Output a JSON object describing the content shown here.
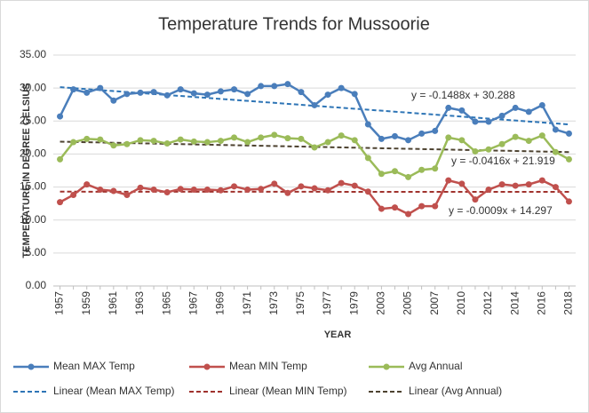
{
  "chart_data": {
    "type": "line",
    "title": "Temperature Trends for Mussoorie",
    "xlabel": "YEAR",
    "ylabel": "TEMPERATURE IN DEGREE CELSIUS",
    "categories": [
      "1957",
      null,
      "1959",
      null,
      "1961",
      null,
      "1963",
      null,
      "1965",
      null,
      "1967",
      null,
      "1969",
      null,
      "1971",
      null,
      "1973",
      null,
      "1975",
      null,
      "1977",
      null,
      "1979",
      null,
      "2003",
      null,
      "2005",
      null,
      "2007",
      null,
      "2010",
      null,
      "2012",
      null,
      "2014",
      null,
      "2016",
      null,
      "2018"
    ],
    "series": [
      {
        "name": "Mean MAX Temp",
        "color": "#4a7ebb",
        "values": [
          25.7,
          29.8,
          29.3,
          30.0,
          28.1,
          29.1,
          29.3,
          29.4,
          28.9,
          29.8,
          29.2,
          29.0,
          29.5,
          29.8,
          29.1,
          30.3,
          30.3,
          30.6,
          29.4,
          27.4,
          29.0,
          30.0,
          29.1,
          24.5,
          22.3,
          22.7,
          22.1,
          23.1,
          23.5,
          27.0,
          26.6,
          24.9,
          24.9,
          25.8,
          27.0,
          26.4,
          27.4,
          23.7,
          23.1
        ]
      },
      {
        "name": "Mean MIN Temp",
        "color": "#c0504d",
        "values": [
          12.7,
          13.8,
          15.4,
          14.6,
          14.4,
          13.8,
          14.9,
          14.6,
          14.2,
          14.7,
          14.6,
          14.6,
          14.5,
          15.1,
          14.6,
          14.7,
          15.5,
          14.1,
          15.1,
          14.8,
          14.5,
          15.6,
          15.2,
          14.3,
          11.7,
          11.9,
          10.9,
          12.1,
          12.1,
          16.0,
          15.5,
          13.1,
          14.6,
          15.4,
          15.2,
          15.4,
          16.0,
          15.0,
          12.8
        ]
      },
      {
        "name": "Avg Annual",
        "color": "#9bbb59",
        "values": [
          19.2,
          21.8,
          22.3,
          22.2,
          21.3,
          21.5,
          22.1,
          22.0,
          21.6,
          22.2,
          21.9,
          21.8,
          22.0,
          22.5,
          21.8,
          22.5,
          22.9,
          22.4,
          22.3,
          21.0,
          21.8,
          22.8,
          22.1,
          19.4,
          17.0,
          17.4,
          16.5,
          17.6,
          17.8,
          22.5,
          22.1,
          20.4,
          20.7,
          21.5,
          22.6,
          22.0,
          22.8,
          20.3,
          19.2
        ]
      }
    ],
    "trendlines": [
      {
        "name": "Linear (Mean MAX Temp)",
        "color": "#2e75b6",
        "slope": -0.1488,
        "intercept": 30.288,
        "label": "y = -0.1488x + 30.288"
      },
      {
        "name": "Linear (Mean MIN Temp)",
        "color": "#a0322d",
        "slope": -0.0009,
        "intercept": 14.297,
        "label": "y = -0.0009x + 14.297"
      },
      {
        "name": "Linear (Avg Annual)",
        "color": "#4d4230",
        "slope": -0.0416,
        "intercept": 21.919,
        "label": "y = -0.0416x + 21.919"
      }
    ],
    "ylim": [
      0,
      35
    ],
    "yticks": [
      {
        "value": 0,
        "label": "0.00"
      },
      {
        "value": 5,
        "label": "5.00"
      },
      {
        "value": 10,
        "label": "10.00"
      },
      {
        "value": 15,
        "label": "15.00"
      },
      {
        "value": 20,
        "label": "20.00"
      },
      {
        "value": 25,
        "label": "25.00"
      },
      {
        "value": 30,
        "label": "30.00"
      },
      {
        "value": 35,
        "label": "35.00"
      }
    ],
    "grid": true
  }
}
